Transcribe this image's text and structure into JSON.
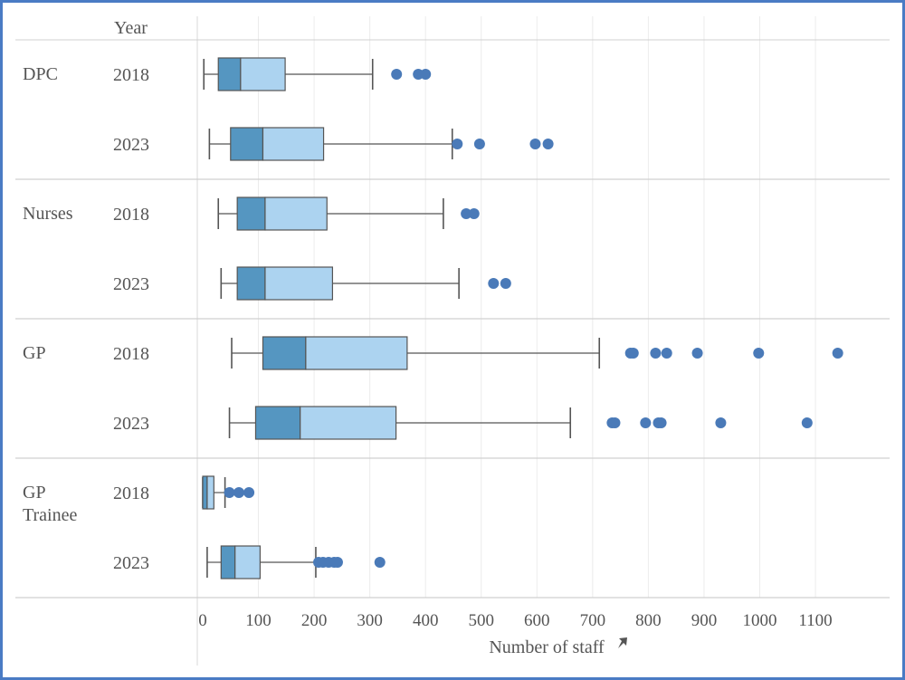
{
  "chart_data": {
    "type": "boxplot",
    "xlabel": "Number of staff",
    "xlim": [
      -20,
      1160
    ],
    "xticks": [
      0,
      100,
      200,
      300,
      400,
      500,
      600,
      700,
      800,
      900,
      1000,
      1100
    ],
    "grid": "vertical",
    "header_year": "Year",
    "colors": {
      "lower": "#5596c1",
      "upper": "#acd3f0",
      "outlier": "#4a7ab8",
      "whisker": "#555555"
    },
    "groups": [
      {
        "label": "DPC",
        "rows": [
          {
            "year": "2018",
            "min": 2,
            "q1": 28,
            "median": 68,
            "q3": 148,
            "max": 305,
            "outliers": [
              348,
              387,
              400
            ]
          },
          {
            "year": "2023",
            "min": 12,
            "q1": 50,
            "median": 108,
            "q3": 217,
            "max": 448,
            "outliers": [
              457,
              497,
              597,
              620
            ]
          }
        ]
      },
      {
        "label": "Nurses",
        "rows": [
          {
            "year": "2018",
            "min": 28,
            "q1": 62,
            "median": 112,
            "q3": 223,
            "max": 432,
            "outliers": [
              473,
              487
            ]
          },
          {
            "year": "2023",
            "min": 33,
            "q1": 62,
            "median": 112,
            "q3": 233,
            "max": 460,
            "outliers": [
              522,
              544
            ]
          }
        ]
      },
      {
        "label": "GP",
        "rows": [
          {
            "year": "2018",
            "min": 52,
            "q1": 108,
            "median": 185,
            "q3": 367,
            "max": 712,
            "outliers": [
              768,
              773,
              813,
              833,
              888,
              998,
              1140
            ]
          },
          {
            "year": "2023",
            "min": 48,
            "q1": 95,
            "median": 175,
            "q3": 347,
            "max": 660,
            "outliers": [
              735,
              740,
              795,
              818,
              823,
              930,
              1085
            ]
          }
        ]
      },
      {
        "label": "GP Trainee",
        "rows": [
          {
            "year": "2018",
            "min": 0,
            "q1": 0,
            "median": 8,
            "q3": 20,
            "max": 40,
            "outliers": [
              48,
              65,
              83
            ]
          },
          {
            "year": "2023",
            "min": 8,
            "q1": 33,
            "median": 58,
            "q3": 103,
            "max": 203,
            "outliers": [
              208,
              216,
              226,
              236,
              242,
              318
            ]
          }
        ]
      }
    ]
  }
}
